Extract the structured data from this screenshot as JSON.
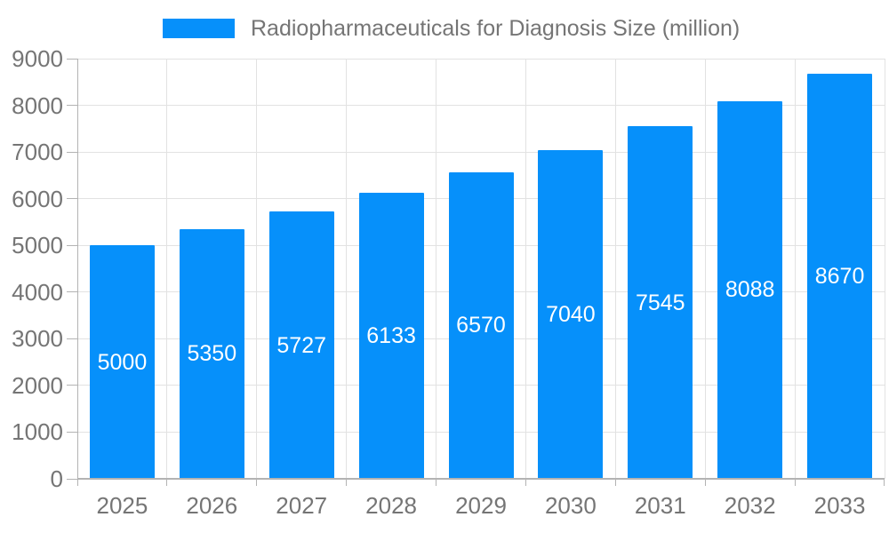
{
  "chart_data": {
    "type": "bar",
    "title": "Radiopharmaceuticals for Diagnosis Size (million)",
    "categories": [
      "2025",
      "2026",
      "2027",
      "2028",
      "2029",
      "2030",
      "2031",
      "2032",
      "2033"
    ],
    "values": [
      5000,
      5350,
      5727,
      6133,
      6570,
      7040,
      7545,
      8088,
      8670
    ],
    "xlabel": "",
    "ylabel": "",
    "ylim": [
      0,
      9000
    ],
    "ytick_step": 1000,
    "grid": true,
    "legend_position": "top",
    "value_labels": "inside-center",
    "colors": {
      "bar": "#0690fa",
      "grid": "#e2e2e2",
      "axis": "#b3b3b3",
      "tick": "#b3b3b3",
      "label": "#757575",
      "value_label": "#ffffff",
      "background": "#ffffff"
    }
  }
}
